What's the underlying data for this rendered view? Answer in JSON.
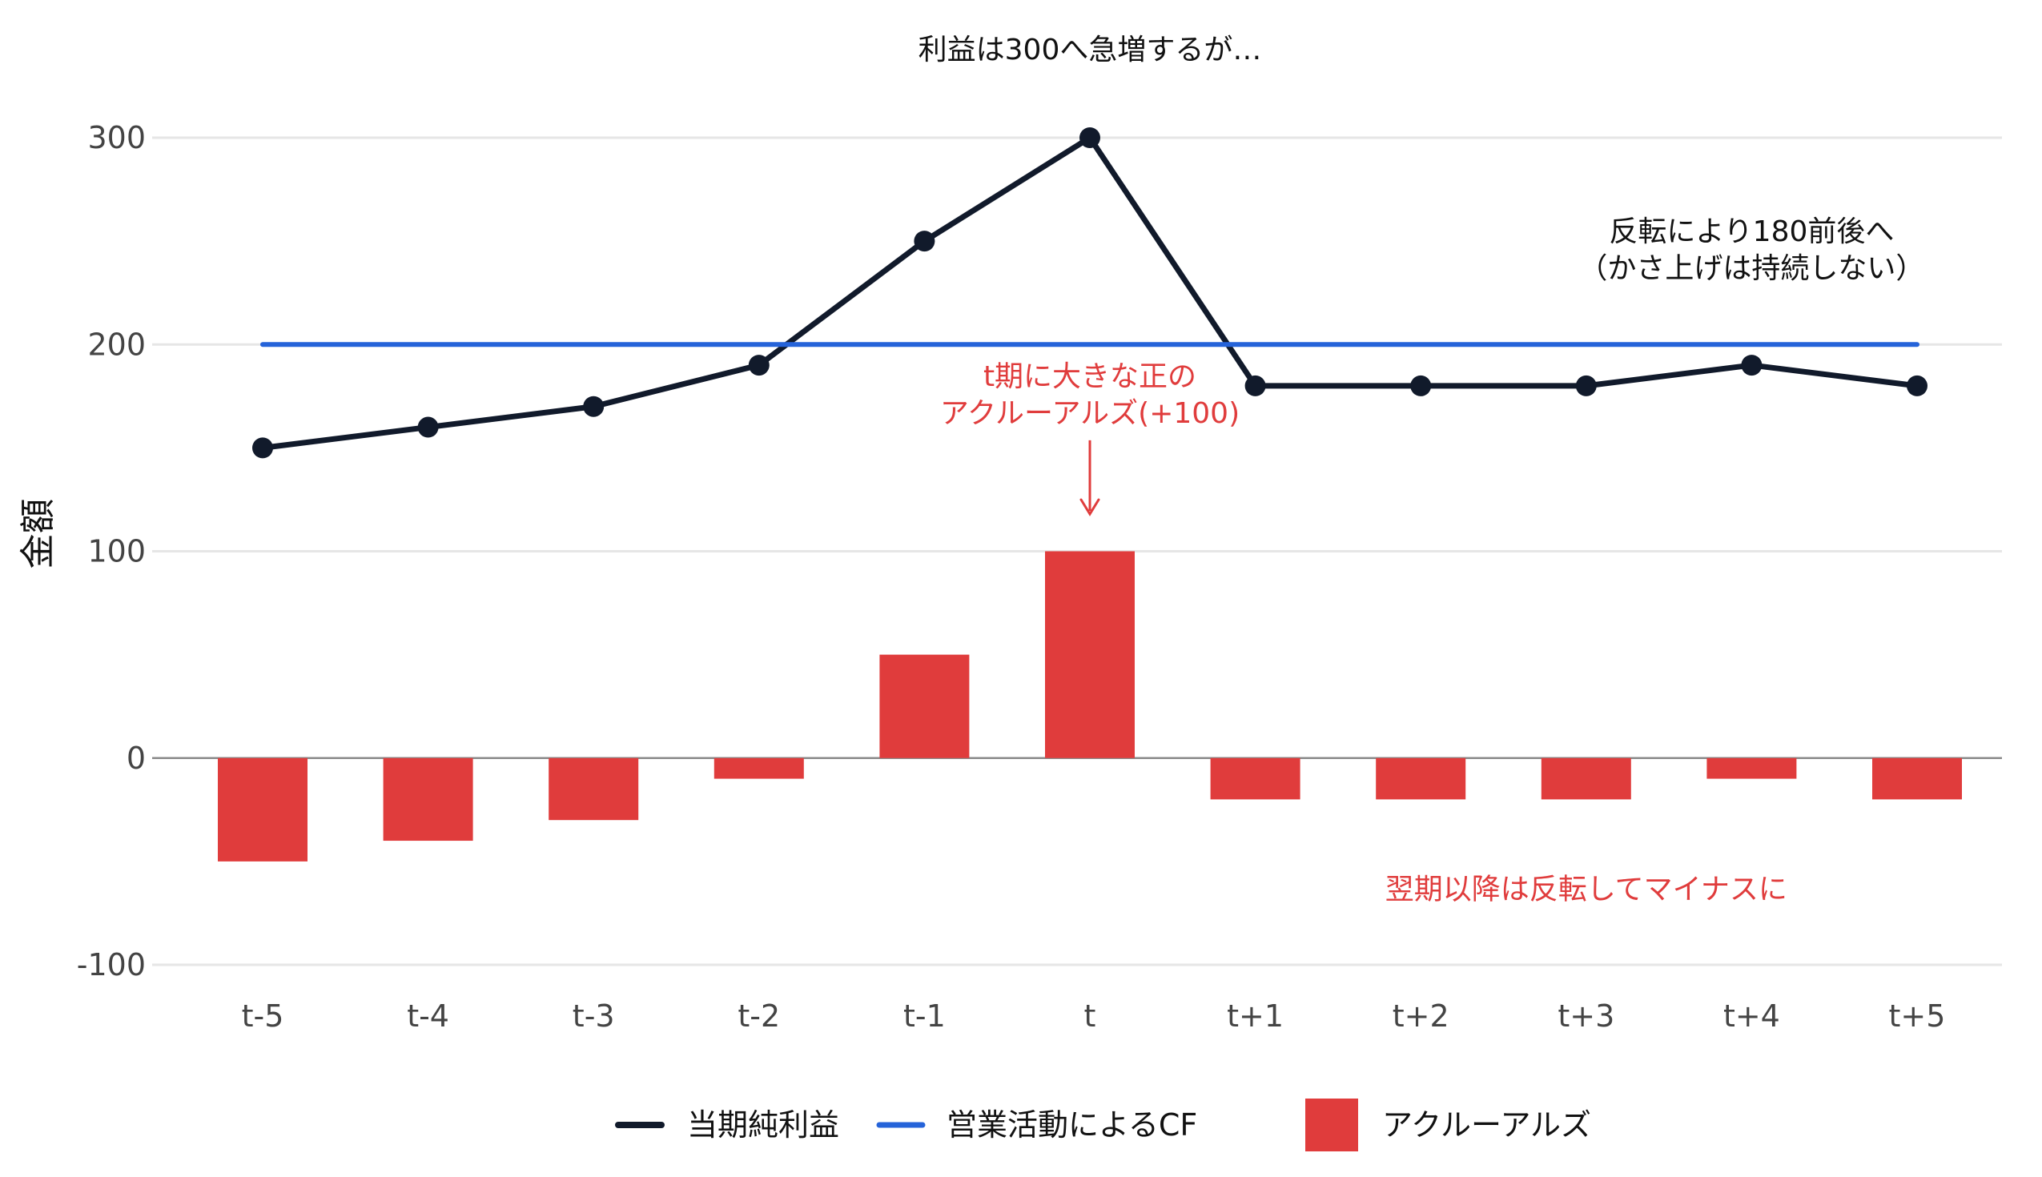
{
  "chart_data": {
    "type": "bar+line",
    "categories": [
      "t-5",
      "t-4",
      "t-3",
      "t-2",
      "t-1",
      "t",
      "t+1",
      "t+2",
      "t+3",
      "t+4",
      "t+5"
    ],
    "ylabel": "金額",
    "ylim": [
      -100,
      300
    ],
    "yticks": [
      -100,
      0,
      100,
      200,
      300
    ],
    "grid": true,
    "series": [
      {
        "name": "当期純利益",
        "kind": "line",
        "color": "#111a2b",
        "values": [
          150,
          160,
          170,
          190,
          250,
          300,
          180,
          180,
          180,
          190,
          180
        ]
      },
      {
        "name": "営業活動によるCF",
        "kind": "line",
        "color": "#2563d9",
        "values": [
          200,
          200,
          200,
          200,
          200,
          200,
          200,
          200,
          200,
          200,
          200
        ]
      },
      {
        "name": "アクルーアルズ",
        "kind": "bar",
        "color": "#e03c3c",
        "values": [
          -50,
          -40,
          -30,
          -10,
          50,
          100,
          -20,
          -20,
          -20,
          -10,
          -20
        ]
      }
    ],
    "annotations": [
      {
        "lines": [
          "利益は300へ急増するが…"
        ],
        "color": "#111111",
        "x": "t",
        "y": 338
      },
      {
        "lines": [
          "反転により180前後へ",
          "（かさ上げは持続しない）"
        ],
        "color": "#111111",
        "x": 9,
        "y": 250
      },
      {
        "lines": [
          "t期に大きな正の",
          "アクルーアルズ(+100)"
        ],
        "color": "#e03c3c",
        "x": "t",
        "y": 180,
        "arrow": true,
        "arrow_to": 118
      },
      {
        "lines": [
          "翌期以降は反転してマイナスに"
        ],
        "color": "#e03c3c",
        "x": 8,
        "y": -68
      }
    ],
    "legend": {
      "placement": "bottom-center"
    }
  }
}
